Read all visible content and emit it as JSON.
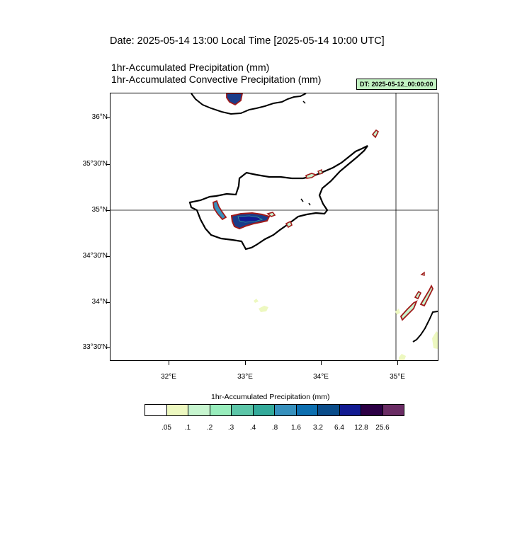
{
  "header": {
    "date_line": "Date: 2025-05-14  13:00 Local Time [2025-05-14  10:00 UTC]",
    "title_1": "1hr-Accumulated Precipitation   (mm)",
    "title_2": "1hr-Accumulated Convective Precipitation   (mm)",
    "dt_badge": "DT: 2025-05-12_00:00:00"
  },
  "map": {
    "lat_labels": [
      "36°N",
      "35°30'N",
      "35°N",
      "34°30'N",
      "34°N",
      "33°30'N"
    ],
    "lon_labels": [
      "32°E",
      "33°E",
      "34°E",
      "35°E"
    ]
  },
  "colorbar": {
    "title": "1hr-Accumulated Precipitation  (mm)",
    "colors": [
      "#ffffff",
      "#edf8c0",
      "#c7f5cf",
      "#98edbc",
      "#5cc6a8",
      "#33aa9a",
      "#3690bd",
      "#0d6fb0",
      "#0a4c8a",
      "#121b92",
      "#2c0045",
      "#6a2c64"
    ],
    "labels": [
      ".05",
      ".1",
      ".2",
      ".3",
      ".4",
      ".8",
      "1.6",
      "3.2",
      "6.4",
      "12.8",
      "25.6"
    ]
  }
}
